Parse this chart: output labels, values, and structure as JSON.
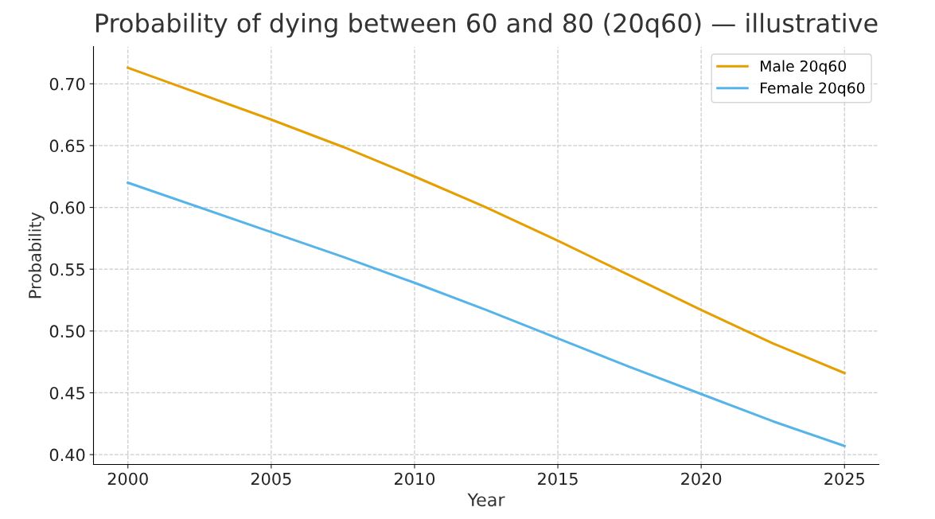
{
  "chart_data": {
    "type": "line",
    "title": "Probability of dying between 60 and 80 (20q60) — illustrative",
    "xlabel": "Year",
    "ylabel": "Probability",
    "x": [
      2000,
      2002.5,
      2005,
      2007.5,
      2010,
      2012.5,
      2015,
      2017.5,
      2020,
      2022.5,
      2025
    ],
    "series": [
      {
        "name": "Male 20q60",
        "color": "#e69f00",
        "values": [
          0.713,
          0.692,
          0.671,
          0.649,
          0.625,
          0.6,
          0.573,
          0.545,
          0.517,
          0.49,
          0.466
        ]
      },
      {
        "name": "Female 20q60",
        "color": "#56b4e9",
        "values": [
          0.62,
          0.6,
          0.58,
          0.56,
          0.539,
          0.517,
          0.494,
          0.471,
          0.449,
          0.427,
          0.407
        ]
      }
    ],
    "xlim": [
      1998.8,
      2026.2
    ],
    "xticks": [
      2000,
      2005,
      2010,
      2015,
      2020,
      2025
    ],
    "ylim": [
      0.392,
      0.73
    ],
    "yticks": [
      {
        "value": 0.4,
        "label": "0.40"
      },
      {
        "value": 0.45,
        "label": "0.45"
      },
      {
        "value": 0.5,
        "label": "0.50"
      },
      {
        "value": 0.55,
        "label": "0.55"
      },
      {
        "value": 0.6,
        "label": "0.60"
      },
      {
        "value": 0.65,
        "label": "0.65"
      },
      {
        "value": 0.7,
        "label": "0.70"
      }
    ],
    "grid": true,
    "legend": "top right",
    "line_style": "solid",
    "marker": "none"
  }
}
